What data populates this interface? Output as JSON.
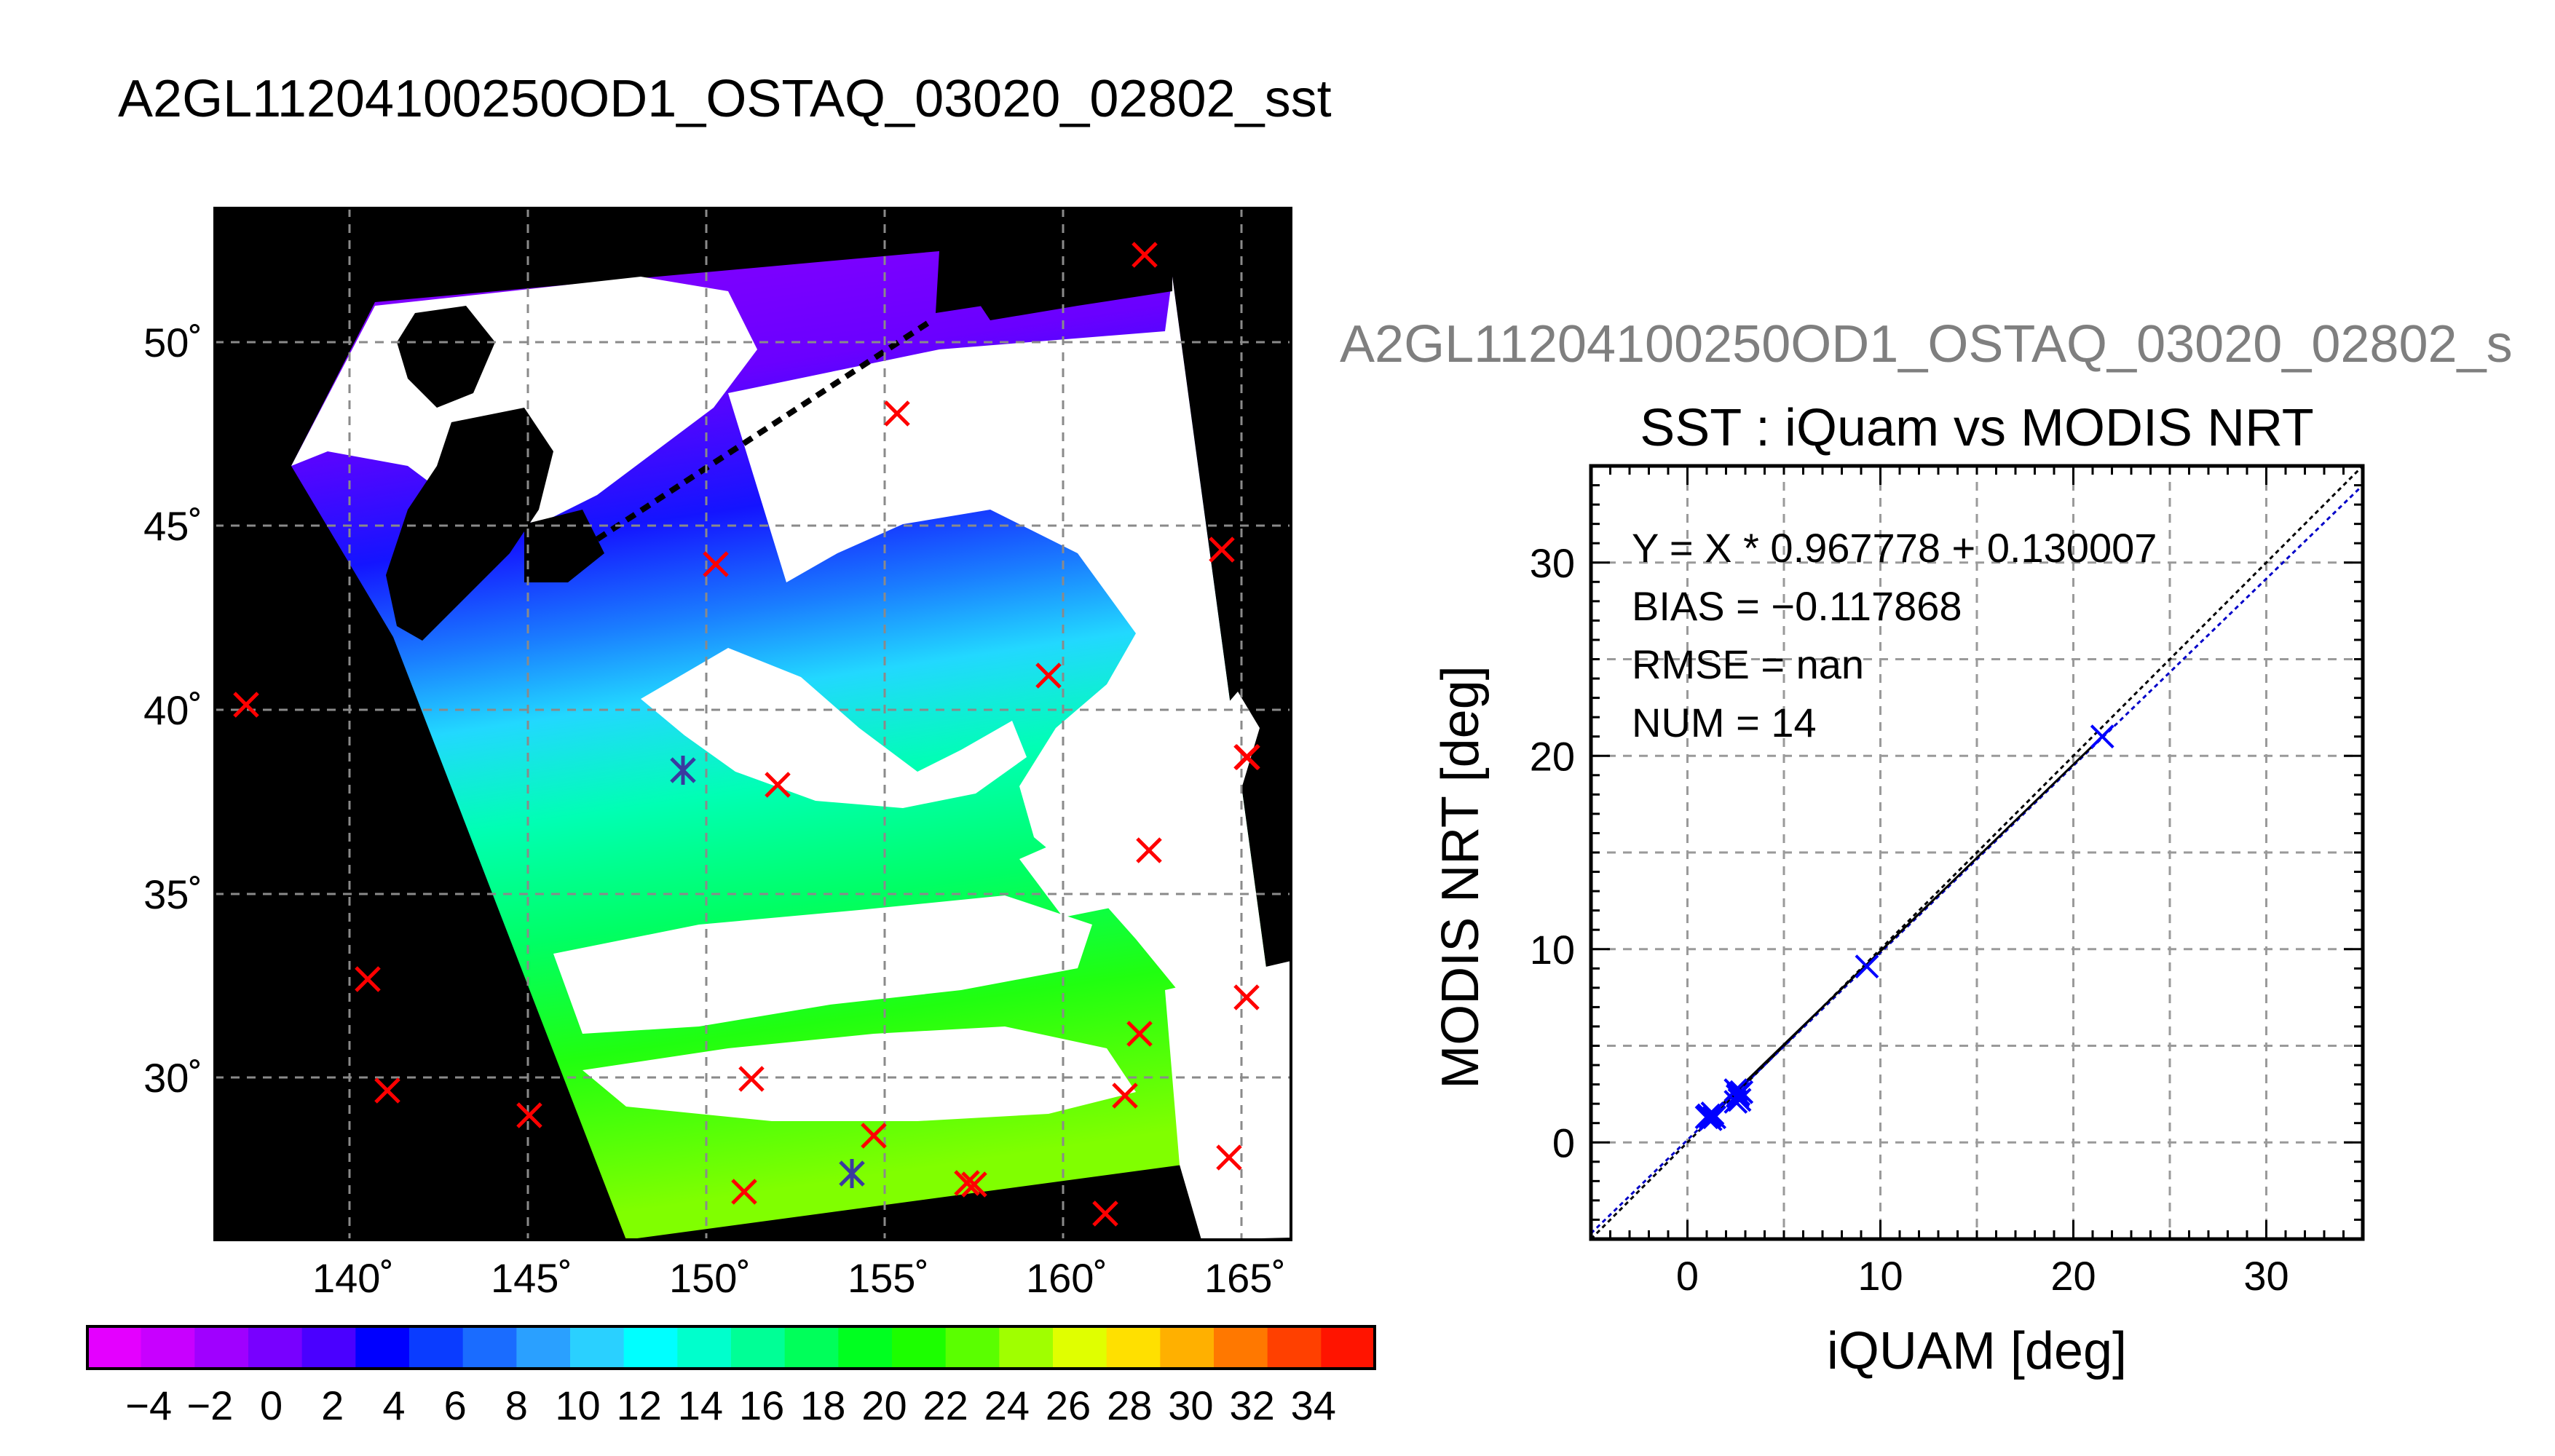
{
  "main_title": "A2GL11204100250OD1_OSTAQ_03020_02802_sst",
  "scatter_top_title": "A2GL11204100250OD1_OSTAQ_03020_02802_s",
  "colors": {
    "marker_map": "#ff0000",
    "marker_special": "#3a3aa0",
    "fit_line": "#0000c8",
    "one_to_one": "#000000",
    "scatter_marker": "#0000ff",
    "land": "#000000",
    "cloud": "#ffffff"
  },
  "map": {
    "lat_labels": [
      "50˚",
      "45˚",
      "40˚",
      "35˚",
      "30˚"
    ],
    "lon_labels": [
      "140˚",
      "145˚",
      "150˚",
      "155˚",
      "160˚",
      "165˚"
    ]
  },
  "colorbar": {
    "labels": [
      "−4",
      "−2",
      "0",
      "2",
      "4",
      "6",
      "8",
      "10",
      "12",
      "14",
      "16",
      "18",
      "20",
      "22",
      "24",
      "26",
      "28",
      "30",
      "32",
      "34"
    ],
    "colors": [
      "#e400ff",
      "#c800ff",
      "#a000ff",
      "#7800ff",
      "#4a00ff",
      "#0000ff",
      "#0a3cff",
      "#1a6cff",
      "#2aa0ff",
      "#2ad0ff",
      "#00ffff",
      "#00ffcc",
      "#00ff96",
      "#00ff5a",
      "#00ff20",
      "#1cff00",
      "#5aff00",
      "#a0ff00",
      "#e0ff00",
      "#ffe000",
      "#ffb000",
      "#ff7800",
      "#ff4000",
      "#ff1400"
    ]
  },
  "chart_data": {
    "type": "scatter",
    "title": "SST : iQuam vs MODIS NRT",
    "xlabel": "iQUAM [deg]",
    "ylabel": "MODIS NRT [deg]",
    "xlim": [
      -5,
      35
    ],
    "ylim": [
      -5,
      35
    ],
    "x_ticks": [
      0,
      10,
      20,
      30
    ],
    "y_ticks": [
      0,
      10,
      20,
      30
    ],
    "x_tick_labels": [
      "0",
      "10",
      "20",
      "30"
    ],
    "y_tick_labels": [
      "0",
      "10",
      "20",
      "30"
    ],
    "grid": true,
    "annotations": [
      "Y = X * 0.967778 + 0.130007",
      "BIAS = −0.117868",
      "RMSE = nan",
      "NUM = 14"
    ],
    "fit": {
      "slope": 0.967778,
      "intercept": 0.130007
    },
    "points": [
      {
        "x": 1.0,
        "y": 1.3
      },
      {
        "x": 1.1,
        "y": 1.4
      },
      {
        "x": 1.2,
        "y": 1.2
      },
      {
        "x": 1.3,
        "y": 1.5
      },
      {
        "x": 1.4,
        "y": 1.3
      },
      {
        "x": 2.5,
        "y": 2.7
      },
      {
        "x": 2.6,
        "y": 2.4
      },
      {
        "x": 2.7,
        "y": 2.2
      },
      {
        "x": 2.8,
        "y": 2.6
      },
      {
        "x": 2.5,
        "y": 2.1
      },
      {
        "x": 9.3,
        "y": 9.1
      },
      {
        "x": 21.5,
        "y": 21.0
      },
      {
        "x": 1.15,
        "y": 1.35
      },
      {
        "x": 2.65,
        "y": 2.5
      }
    ]
  }
}
